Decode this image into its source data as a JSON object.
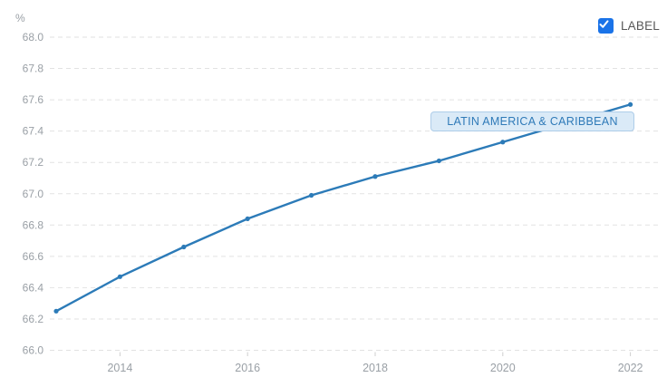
{
  "ylabel": "%",
  "legend": {
    "label": "LABEL",
    "checked": true
  },
  "annotation": {
    "text": "LATIN AMERICA & CARIBBEAN"
  },
  "colors": {
    "line": "#2c7bb8",
    "grid": "#e2e2e2",
    "axis_text": "#9aa0a6",
    "tick_mark": "#cfcfcf",
    "checkbox": "#1a73e8",
    "legend_text": "#575757",
    "annotation_bg": "#daeaf7",
    "annotation_border": "#aecde9",
    "annotation_text": "#2f7ab8"
  },
  "chart_data": {
    "type": "line",
    "x": [
      2013,
      2014,
      2015,
      2016,
      2017,
      2018,
      2019,
      2020,
      2021,
      2022
    ],
    "series": [
      {
        "name": "LATIN AMERICA & CARIBBEAN",
        "values": [
          66.25,
          66.47,
          66.66,
          66.84,
          66.99,
          67.11,
          67.21,
          67.33,
          67.45,
          67.57
        ]
      }
    ],
    "title": "",
    "xlabel": "",
    "ylabel": "%",
    "ylim": [
      66.0,
      68.0
    ],
    "ytick_step": 0.2,
    "yticks": [
      66.0,
      66.2,
      66.4,
      66.6,
      66.8,
      67.0,
      67.2,
      67.4,
      67.6,
      67.8,
      68.0
    ],
    "xticks": [
      2014,
      2016,
      2018,
      2020,
      2022
    ],
    "grid": "horizontal-dashed",
    "legend_position": "top-right",
    "markers": true
  }
}
